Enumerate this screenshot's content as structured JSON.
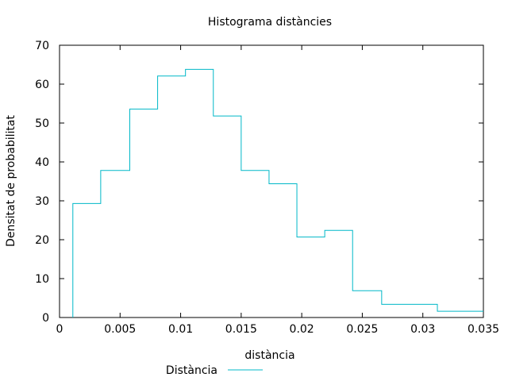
{
  "chart_data": {
    "type": "histogram",
    "title": "Histograma distàncies",
    "xlabel": "distància",
    "ylabel": "Densitat de probabilitat",
    "xlim": [
      0,
      0.035
    ],
    "ylim": [
      0,
      70
    ],
    "x_ticks": [
      "0",
      "0.005",
      "0.01",
      "0.015",
      "0.02",
      "0.025",
      "0.03",
      "0.035"
    ],
    "y_ticks": [
      "0",
      "10",
      "20",
      "30",
      "40",
      "50",
      "60",
      "70"
    ],
    "grid": false,
    "legend": {
      "position": "bottom-left",
      "entries": [
        "Distància"
      ]
    },
    "series": [
      {
        "name": "Distància",
        "color": "#00b8c8",
        "bin_edges": [
          0.0011,
          0.0034,
          0.0058,
          0.0081,
          0.0104,
          0.0127,
          0.015,
          0.0173,
          0.0196,
          0.0219,
          0.0242,
          0.0266,
          0.0312,
          0.035
        ],
        "densities": [
          29.3,
          37.8,
          53.6,
          62.1,
          63.8,
          51.8,
          37.8,
          34.4,
          20.7,
          22.4,
          6.9,
          3.4,
          1.6
        ]
      }
    ]
  }
}
